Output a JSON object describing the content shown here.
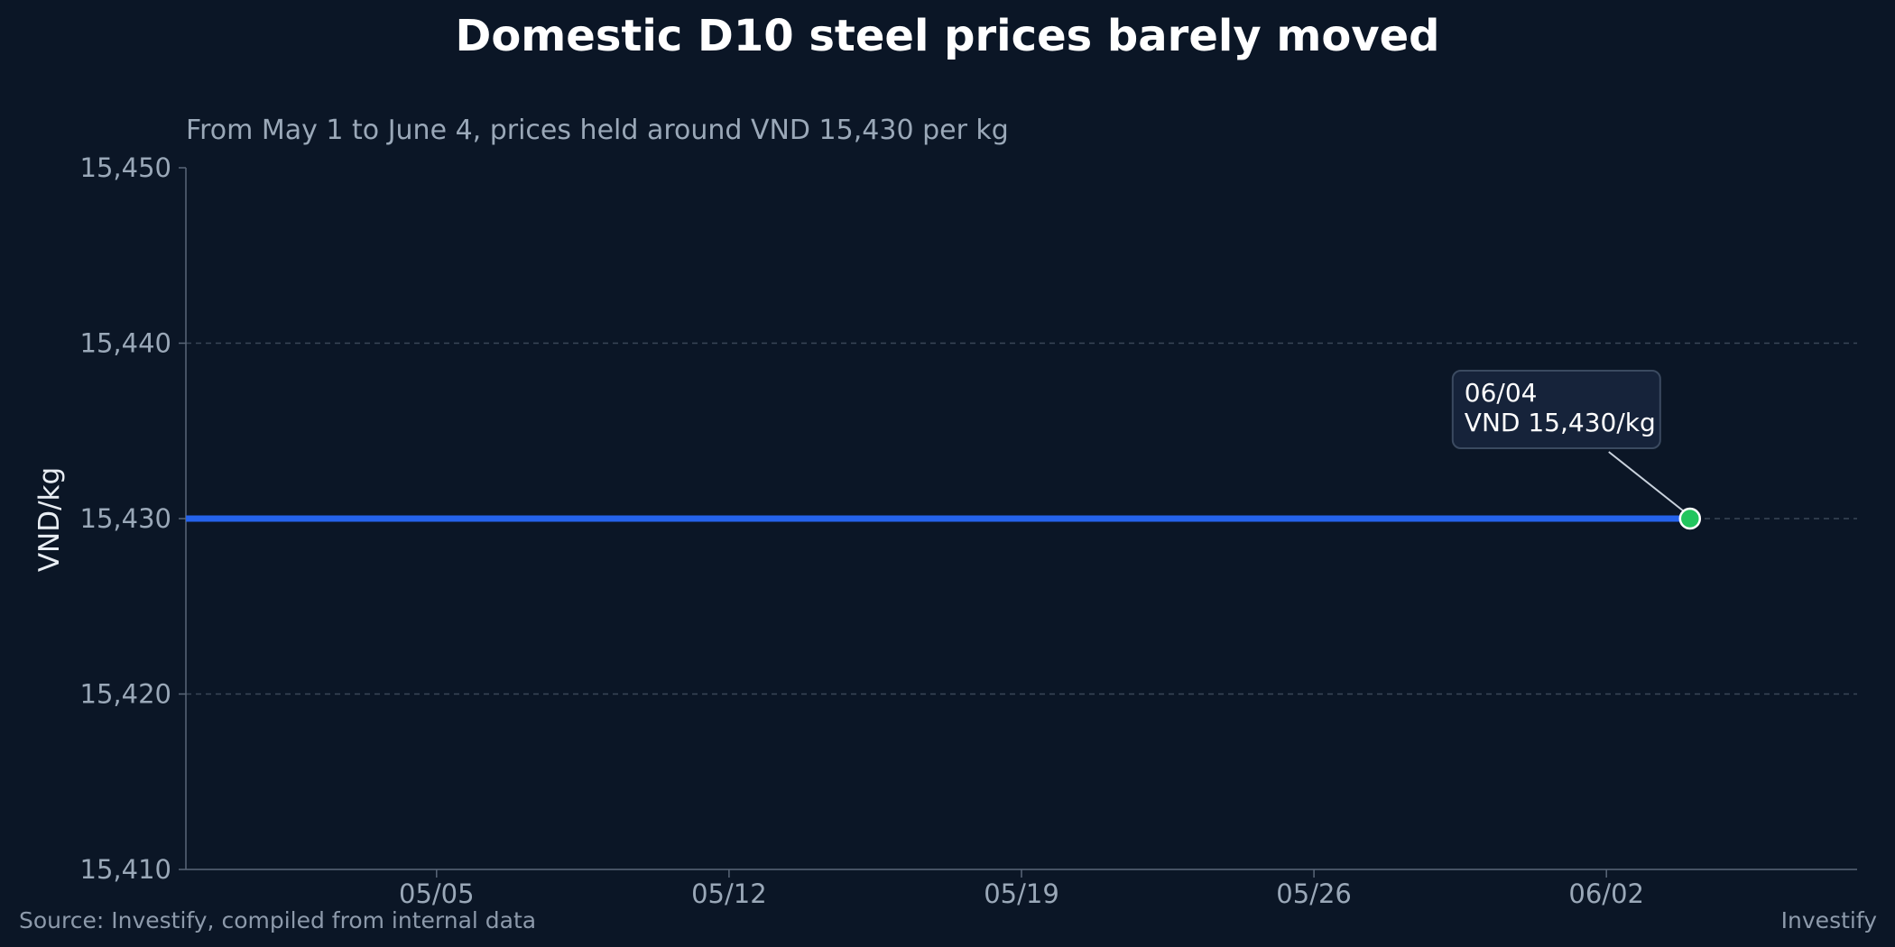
{
  "chart_data": {
    "type": "line",
    "title": "Domestic D10 steel prices barely moved",
    "subtitle": "From May 1 to June 4, prices held around VND 15,430 per kg",
    "ylabel": "VND/kg",
    "xlabel": "",
    "x_ticks": [
      "05/05",
      "05/12",
      "05/19",
      "05/26",
      "06/02"
    ],
    "y_ticks": [
      "15,410",
      "15,420",
      "15,430",
      "15,440",
      "15,450"
    ],
    "ylim": [
      15410,
      15450
    ],
    "xlim": [
      "2024-04-29",
      "2024-06-08"
    ],
    "grid": "horizontal dashed",
    "series": [
      {
        "x": [
          "2024-04-29",
          "2024-06-04"
        ],
        "values": [
          15430,
          15430
        ],
        "color": "#2563eb"
      }
    ],
    "highlight": {
      "x": "2024-06-04",
      "value": 15430,
      "color": "#22c55e",
      "label_line1": "06/04",
      "label_line2": "VND 15,430/kg"
    }
  },
  "footer": {
    "source": "Source: Investify, compiled from internal data",
    "brand": "Investify"
  },
  "colors": {
    "background": "#0b1626",
    "grid": "#3a4657",
    "axis": "#5a6678",
    "callout_bg": "#16233a",
    "callout_border": "#3b4a60"
  }
}
